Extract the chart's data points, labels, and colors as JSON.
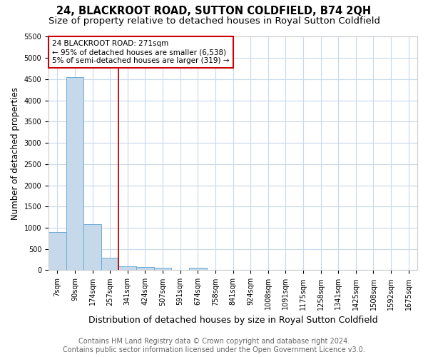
{
  "title": "24, BLACKROOT ROAD, SUTTON COLDFIELD, B74 2QH",
  "subtitle": "Size of property relative to detached houses in Royal Sutton Coldfield",
  "xlabel": "Distribution of detached houses by size in Royal Sutton Coldfield",
  "ylabel": "Number of detached properties",
  "footer_line1": "Contains HM Land Registry data © Crown copyright and database right 2024.",
  "footer_line2": "Contains public sector information licensed under the Open Government Licence v3.0.",
  "categories": [
    "7sqm",
    "90sqm",
    "174sqm",
    "257sqm",
    "341sqm",
    "424sqm",
    "507sqm",
    "591sqm",
    "674sqm",
    "758sqm",
    "841sqm",
    "924sqm",
    "1008sqm",
    "1091sqm",
    "1175sqm",
    "1258sqm",
    "1341sqm",
    "1425sqm",
    "1508sqm",
    "1592sqm",
    "1675sqm"
  ],
  "values": [
    900,
    4550,
    1080,
    300,
    90,
    75,
    50,
    0,
    50,
    0,
    0,
    0,
    0,
    0,
    0,
    0,
    0,
    0,
    0,
    0,
    0
  ],
  "bar_color": "#c5d9eb",
  "bar_edge_color": "#6aaad4",
  "property_line_color": "#cc0000",
  "property_line_index": 3.5,
  "annotation_text": "24 BLACKROOT ROAD: 271sqm\n← 95% of detached houses are smaller (6,538)\n5% of semi-detached houses are larger (319) →",
  "annotation_box_color": "#ffffff",
  "annotation_box_edge_color": "#cc0000",
  "ylim": [
    0,
    5500
  ],
  "yticks": [
    0,
    500,
    1000,
    1500,
    2000,
    2500,
    3000,
    3500,
    4000,
    4500,
    5000,
    5500
  ],
  "grid_color": "#c8d8ec",
  "bg_color": "#ffffff",
  "title_fontsize": 10.5,
  "subtitle_fontsize": 9.5,
  "xlabel_fontsize": 9,
  "ylabel_fontsize": 8.5,
  "tick_fontsize": 7,
  "footer_fontsize": 7,
  "annotation_fontsize": 7.5
}
